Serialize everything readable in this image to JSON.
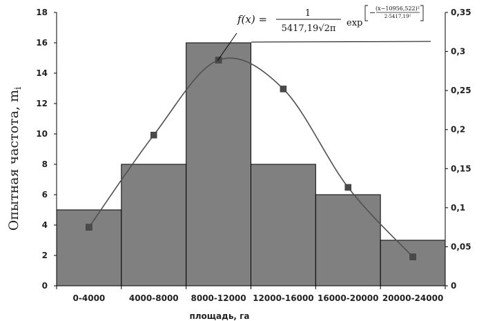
{
  "chart_data": {
    "type": "bar",
    "categories": [
      "0-4000",
      "4000-8000",
      "8000-12000",
      "12000-16000",
      "16000-20000",
      "20000-24000"
    ],
    "series": [
      {
        "values": [
          5,
          8,
          16,
          8,
          6,
          3
        ],
        "axis": "left",
        "color": "#808080"
      },
      {
        "values": [
          0.075,
          0.193,
          0.289,
          0.252,
          0.126,
          0.037
        ],
        "axis": "right",
        "type": "line",
        "color": "#505050"
      }
    ],
    "ylabel": "Опытная частота, m",
    "ylabel_sub": "i",
    "xlabel": "площадь, га",
    "ylim": [
      0,
      18
    ],
    "y_ticks": [
      "0",
      "2",
      "4",
      "6",
      "8",
      "10",
      "12",
      "14",
      "16",
      "18"
    ],
    "y2lim": [
      0,
      0.35
    ],
    "y2_ticks": [
      "0",
      "0,05",
      "0,1",
      "0,15",
      "0,2",
      "0,25",
      "0,3",
      "0,35"
    ],
    "grid": false,
    "annotation": {
      "lhs": "f(x) =",
      "numerator": "1",
      "denominator": "5417,19√2π",
      "exp": "exp",
      "exp_numerator": "(x−10956,522)²",
      "exp_denominator": "2·5417,19²"
    }
  }
}
